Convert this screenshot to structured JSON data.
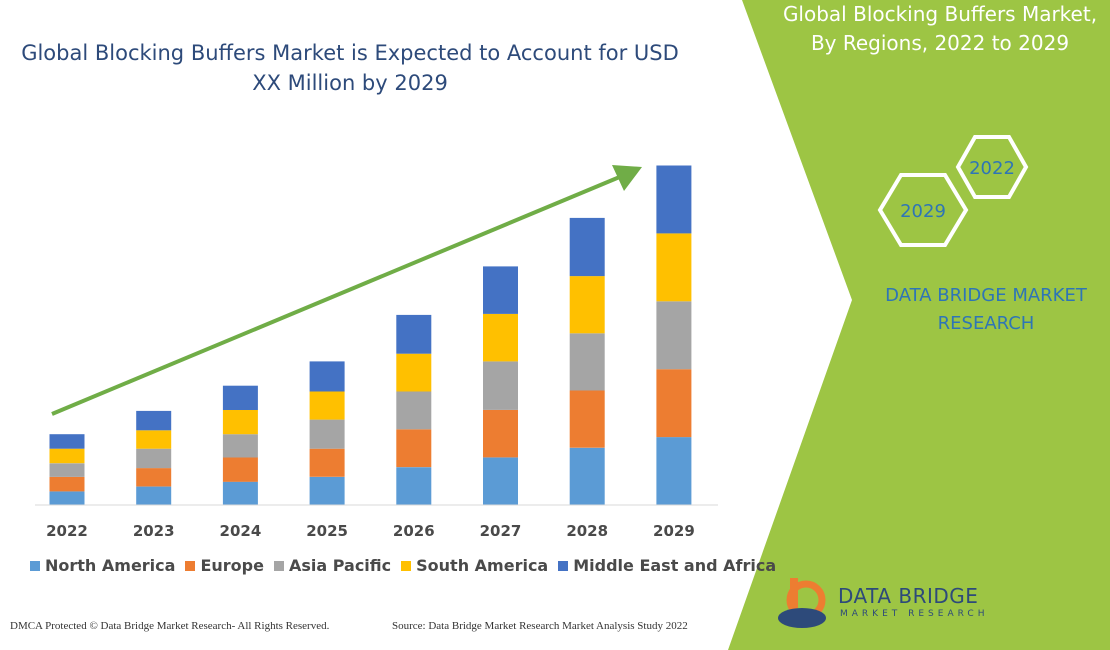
{
  "chart_data": {
    "type": "bar",
    "stacked": true,
    "title": "Global Blocking Buffers Market is Expected to Account for USD XX Million by 2029",
    "categories": [
      "2022",
      "2023",
      "2024",
      "2025",
      "2026",
      "2027",
      "2028",
      "2029"
    ],
    "series": [
      {
        "name": "North America",
        "color": "#5b9bd5",
        "values": [
          14,
          19,
          24,
          29,
          39,
          49,
          59,
          70
        ]
      },
      {
        "name": "Europe",
        "color": "#ed7d31",
        "values": [
          15,
          19,
          25,
          29,
          39,
          49,
          59,
          70
        ]
      },
      {
        "name": "Asia Pacific",
        "color": "#a5a5a5",
        "values": [
          14,
          20,
          24,
          30,
          39,
          50,
          59,
          70
        ]
      },
      {
        "name": "South America",
        "color": "#ffc000",
        "values": [
          15,
          19,
          25,
          29,
          39,
          49,
          59,
          70
        ]
      },
      {
        "name": "Middle East and Africa",
        "color": "#4472c4",
        "values": [
          15,
          20,
          25,
          31,
          40,
          49,
          60,
          70
        ]
      }
    ],
    "trend_arrow": true,
    "legend_position": "bottom",
    "grid": false
  },
  "side_panel": {
    "title": "Global Blocking Buffers Market, By Regions, 2022 to 2029",
    "hex_labels": [
      "2022",
      "2029"
    ],
    "brand_text": "DATA BRIDGE MARKET RESEARCH",
    "accent_color": "#9dc544"
  },
  "footer": {
    "left": "DMCA Protected © Data Bridge Market Research- All Rights Reserved.",
    "right": "Source: Data Bridge Market Research Market Analysis Study 2022"
  },
  "logo": {
    "name": "DATA BRIDGE",
    "sub": "MARKET RESEARCH"
  }
}
